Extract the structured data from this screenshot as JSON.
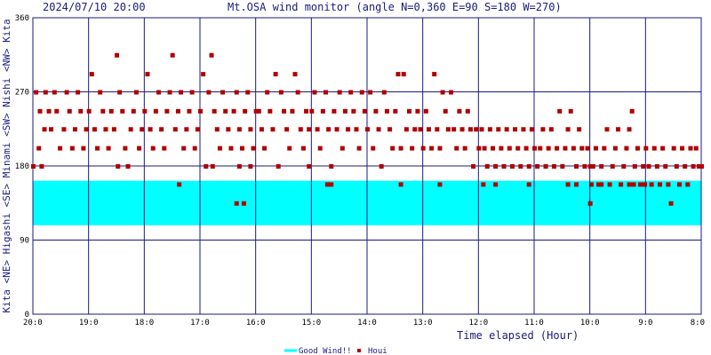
{
  "header": {
    "timestamp": "2024/07/10 20:00",
    "title": "Mt.OSA wind monitor (angle N=0,360 E=90 S=180 W=270)"
  },
  "colors": {
    "grid": "#1a1a80",
    "good_wind": "#00ffff",
    "houi": "#b00000",
    "text": "#1a1a80"
  },
  "chart_data": {
    "type": "scatter",
    "title": "Mt.OSA wind monitor (angle N=0,360 E=90 S=180 W=270)",
    "xlabel": "Time elapsed (Hour)",
    "x_tick_labels": [
      "20:0",
      "19:0",
      "18:0",
      "17:0",
      "16:0",
      "15:0",
      "14:0",
      "13:0",
      "12:0",
      "11:0",
      "10:0",
      "9:0",
      "8:0"
    ],
    "x_range_hours_elapsed": [
      0,
      12
    ],
    "ylim": [
      0,
      360
    ],
    "y_ticks": [
      0,
      90,
      180,
      270,
      360
    ],
    "y_direction_labels": "Kita <NE> Higashi <SE> Minami <SW> Nishi <NW> Kita",
    "grid": true,
    "legend_position": "bottom-center",
    "good_wind_band": {
      "name": "Good Wind!!",
      "ymin": 108,
      "ymax": 162
    },
    "series": [
      {
        "name": "Houi",
        "points": [
          [
            0.0,
            180
          ],
          [
            0.05,
            270
          ],
          [
            0.1,
            202
          ],
          [
            0.12,
            247
          ],
          [
            0.15,
            180
          ],
          [
            0.2,
            225
          ],
          [
            0.22,
            270
          ],
          [
            0.28,
            247
          ],
          [
            0.32,
            225
          ],
          [
            0.38,
            270
          ],
          [
            0.42,
            247
          ],
          [
            0.48,
            202
          ],
          [
            0.55,
            225
          ],
          [
            0.6,
            270
          ],
          [
            0.65,
            247
          ],
          [
            0.7,
            202
          ],
          [
            0.75,
            225
          ],
          [
            0.8,
            270
          ],
          [
            0.85,
            247
          ],
          [
            0.9,
            202
          ],
          [
            0.95,
            225
          ],
          [
            1.0,
            247
          ],
          [
            1.05,
            292
          ],
          [
            1.1,
            225
          ],
          [
            1.15,
            202
          ],
          [
            1.2,
            270
          ],
          [
            1.25,
            247
          ],
          [
            1.3,
            225
          ],
          [
            1.35,
            202
          ],
          [
            1.4,
            247
          ],
          [
            1.45,
            225
          ],
          [
            1.5,
            315
          ],
          [
            1.52,
            180
          ],
          [
            1.55,
            270
          ],
          [
            1.6,
            247
          ],
          [
            1.65,
            202
          ],
          [
            1.7,
            180
          ],
          [
            1.75,
            225
          ],
          [
            1.8,
            247
          ],
          [
            1.85,
            270
          ],
          [
            1.9,
            202
          ],
          [
            1.95,
            225
          ],
          [
            2.0,
            247
          ],
          [
            2.05,
            292
          ],
          [
            2.1,
            225
          ],
          [
            2.15,
            202
          ],
          [
            2.2,
            247
          ],
          [
            2.25,
            270
          ],
          [
            2.3,
            225
          ],
          [
            2.35,
            202
          ],
          [
            2.4,
            247
          ],
          [
            2.45,
            270
          ],
          [
            2.5,
            315
          ],
          [
            2.55,
            225
          ],
          [
            2.6,
            247
          ],
          [
            2.65,
            270
          ],
          [
            2.7,
            202
          ],
          [
            2.75,
            225
          ],
          [
            2.8,
            247
          ],
          [
            2.85,
            270
          ],
          [
            2.9,
            202
          ],
          [
            2.95,
            225
          ],
          [
            3.0,
            247
          ],
          [
            2.62,
            158
          ],
          [
            3.05,
            292
          ],
          [
            3.1,
            180
          ],
          [
            3.15,
            270
          ],
          [
            3.2,
            315
          ],
          [
            3.22,
            180
          ],
          [
            3.25,
            247
          ],
          [
            3.3,
            225
          ],
          [
            3.35,
            202
          ],
          [
            3.4,
            270
          ],
          [
            3.45,
            247
          ],
          [
            3.5,
            225
          ],
          [
            3.55,
            202
          ],
          [
            3.6,
            247
          ],
          [
            3.65,
            270
          ],
          [
            3.7,
            225
          ],
          [
            3.75,
            202
          ],
          [
            3.8,
            247
          ],
          [
            3.85,
            270
          ],
          [
            3.9,
            225
          ],
          [
            3.95,
            202
          ],
          [
            4.0,
            247
          ],
          [
            3.65,
            135
          ],
          [
            3.78,
            135
          ],
          [
            3.7,
            180
          ],
          [
            3.9,
            180
          ],
          [
            4.05,
            247
          ],
          [
            4.1,
            225
          ],
          [
            4.15,
            202
          ],
          [
            4.2,
            270
          ],
          [
            4.25,
            247
          ],
          [
            4.3,
            225
          ],
          [
            4.35,
            292
          ],
          [
            4.4,
            180
          ],
          [
            4.45,
            270
          ],
          [
            4.5,
            247
          ],
          [
            4.55,
            225
          ],
          [
            4.6,
            202
          ],
          [
            4.65,
            247
          ],
          [
            4.7,
            292
          ],
          [
            4.75,
            270
          ],
          [
            4.8,
            225
          ],
          [
            4.85,
            202
          ],
          [
            4.9,
            247
          ],
          [
            4.95,
            225
          ],
          [
            5.0,
            247
          ],
          [
            4.95,
            180
          ],
          [
            5.05,
            270
          ],
          [
            5.1,
            225
          ],
          [
            5.15,
            202
          ],
          [
            5.2,
            247
          ],
          [
            5.25,
            270
          ],
          [
            5.3,
            225
          ],
          [
            5.35,
            180
          ],
          [
            5.4,
            247
          ],
          [
            5.45,
            225
          ],
          [
            5.5,
            270
          ],
          [
            5.55,
            202
          ],
          [
            5.6,
            247
          ],
          [
            5.65,
            225
          ],
          [
            5.7,
            270
          ],
          [
            5.75,
            247
          ],
          [
            5.8,
            225
          ],
          [
            5.85,
            202
          ],
          [
            5.9,
            270
          ],
          [
            5.95,
            247
          ],
          [
            6.0,
            225
          ],
          [
            5.28,
            158
          ],
          [
            5.35,
            158
          ],
          [
            6.05,
            270
          ],
          [
            6.1,
            202
          ],
          [
            6.15,
            247
          ],
          [
            6.2,
            225
          ],
          [
            6.25,
            180
          ],
          [
            6.3,
            270
          ],
          [
            6.35,
            247
          ],
          [
            6.4,
            225
          ],
          [
            6.45,
            202
          ],
          [
            6.5,
            247
          ],
          [
            6.55,
            292
          ],
          [
            6.6,
            202
          ],
          [
            6.65,
            292
          ],
          [
            6.7,
            225
          ],
          [
            6.75,
            247
          ],
          [
            6.8,
            202
          ],
          [
            6.85,
            225
          ],
          [
            6.9,
            247
          ],
          [
            6.95,
            225
          ],
          [
            7.0,
            202
          ],
          [
            6.6,
            158
          ],
          [
            7.05,
            247
          ],
          [
            7.1,
            225
          ],
          [
            7.15,
            202
          ],
          [
            7.2,
            292
          ],
          [
            7.25,
            225
          ],
          [
            7.3,
            202
          ],
          [
            7.35,
            270
          ],
          [
            7.4,
            247
          ],
          [
            7.45,
            225
          ],
          [
            7.5,
            270
          ],
          [
            7.55,
            225
          ],
          [
            7.6,
            202
          ],
          [
            7.65,
            247
          ],
          [
            7.7,
            225
          ],
          [
            7.75,
            202
          ],
          [
            7.8,
            247
          ],
          [
            7.85,
            225
          ],
          [
            7.9,
            180
          ],
          [
            7.95,
            225
          ],
          [
            8.0,
            202
          ],
          [
            7.3,
            158
          ],
          [
            8.05,
            225
          ],
          [
            8.1,
            202
          ],
          [
            8.15,
            180
          ],
          [
            8.2,
            225
          ],
          [
            8.25,
            202
          ],
          [
            8.3,
            180
          ],
          [
            8.35,
            225
          ],
          [
            8.4,
            202
          ],
          [
            8.45,
            180
          ],
          [
            8.5,
            225
          ],
          [
            8.55,
            202
          ],
          [
            8.6,
            180
          ],
          [
            8.65,
            225
          ],
          [
            8.7,
            202
          ],
          [
            8.75,
            180
          ],
          [
            8.8,
            225
          ],
          [
            8.85,
            202
          ],
          [
            8.9,
            180
          ],
          [
            8.95,
            225
          ],
          [
            9.0,
            202
          ],
          [
            8.08,
            158
          ],
          [
            8.3,
            158
          ],
          [
            8.9,
            158
          ],
          [
            9.05,
            180
          ],
          [
            9.1,
            202
          ],
          [
            9.15,
            225
          ],
          [
            9.2,
            180
          ],
          [
            9.25,
            202
          ],
          [
            9.3,
            225
          ],
          [
            9.35,
            180
          ],
          [
            9.4,
            202
          ],
          [
            9.45,
            247
          ],
          [
            9.5,
            180
          ],
          [
            9.55,
            202
          ],
          [
            9.6,
            225
          ],
          [
            9.65,
            247
          ],
          [
            9.7,
            202
          ],
          [
            9.75,
            180
          ],
          [
            9.8,
            225
          ],
          [
            9.85,
            202
          ],
          [
            9.9,
            180
          ],
          [
            9.95,
            202
          ],
          [
            10.0,
            180
          ],
          [
            9.6,
            158
          ],
          [
            9.75,
            158
          ],
          [
            10.0,
            135
          ],
          [
            10.02,
            158
          ],
          [
            10.05,
            180
          ],
          [
            10.1,
            202
          ],
          [
            10.15,
            158
          ],
          [
            10.2,
            180
          ],
          [
            10.25,
            202
          ],
          [
            10.3,
            225
          ],
          [
            10.35,
            158
          ],
          [
            10.4,
            180
          ],
          [
            10.45,
            202
          ],
          [
            10.5,
            225
          ],
          [
            10.55,
            158
          ],
          [
            10.6,
            180
          ],
          [
            10.65,
            202
          ],
          [
            10.7,
            225
          ],
          [
            10.75,
            247
          ],
          [
            10.8,
            180
          ],
          [
            10.85,
            202
          ],
          [
            10.9,
            158
          ],
          [
            10.95,
            180
          ],
          [
            11.0,
            202
          ],
          [
            10.2,
            158
          ],
          [
            10.7,
            158
          ],
          [
            10.78,
            158
          ],
          [
            10.98,
            158
          ],
          [
            11.05,
            180
          ],
          [
            11.1,
            158
          ],
          [
            11.15,
            202
          ],
          [
            11.2,
            180
          ],
          [
            11.25,
            158
          ],
          [
            11.3,
            202
          ],
          [
            11.35,
            180
          ],
          [
            11.4,
            158
          ],
          [
            11.45,
            135
          ],
          [
            11.5,
            202
          ],
          [
            11.55,
            180
          ],
          [
            11.6,
            158
          ],
          [
            11.65,
            202
          ],
          [
            11.7,
            180
          ],
          [
            11.75,
            158
          ],
          [
            11.8,
            202
          ],
          [
            11.85,
            180
          ],
          [
            11.9,
            202
          ],
          [
            11.95,
            180
          ],
          [
            12.0,
            180
          ]
        ]
      }
    ]
  },
  "legend": [
    {
      "label": "Good Wind!!",
      "icon": "cyan-line-swatch"
    },
    {
      "label": "Houi",
      "icon": "red-square-marker"
    }
  ]
}
